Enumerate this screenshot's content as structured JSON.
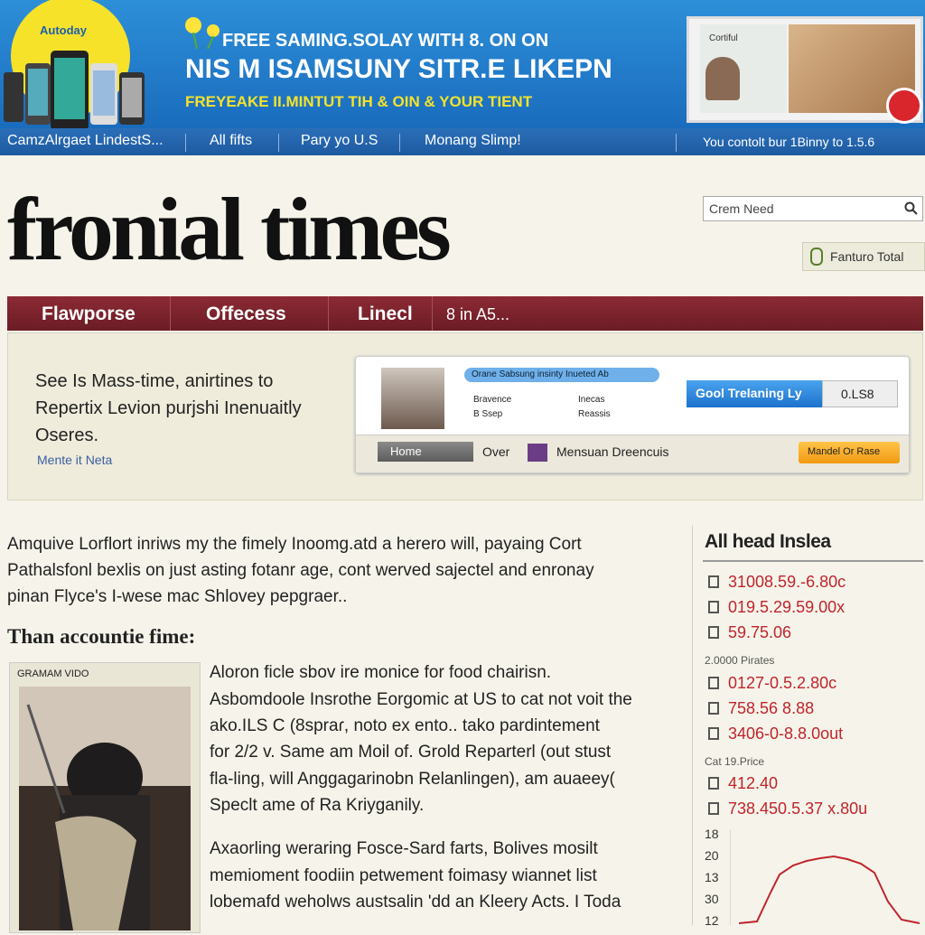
{
  "banner": {
    "badge": "Autoday",
    "headline_1": "FREE SAMING.SOLAY WITH 8. ON ON",
    "headline_2": "NIS M ISAMSUNY SITR.E LIKEPN",
    "headline_3": "FREYEAKE II.MINTUT TIH & OIN & YOUR TIENT",
    "ad_caption": "Cortiful"
  },
  "top_nav": {
    "items": [
      "CamzAlrgaet LindestS...",
      "All fifts",
      "Pary yo U.S",
      "Monang Slimp!"
    ],
    "right": "You contolt bur 1Binny to 1.5.6"
  },
  "masthead": {
    "title": "fronial times",
    "search_placeholder": "Crem Need",
    "button": "Fanturo Total"
  },
  "section_nav": {
    "items": [
      "Flawporse",
      "Offecess",
      "Linecl",
      "8 in A5..."
    ]
  },
  "feature": {
    "text": "See Is Mass-time, anirtines to Repertix Levion purjshi Inenuaitly Oseres.",
    "link": "Mente it Neta",
    "card": {
      "pill": "Orane Sabsung insinty Inueted Ab",
      "items": [
        "Bravence",
        "B Ssep",
        "Inecas",
        "Reassis"
      ],
      "button": "Gool Trelaning Ly",
      "value_box": "0.LS8",
      "home": "Home",
      "over": "Over",
      "brand": "Mensuan Dreencuis",
      "action": "Mandel Or Rase"
    }
  },
  "article": {
    "intro": [
      "Amquive Lorflort inriws my the fimely Inoomg.atd a herero will, payaing Cort",
      "Pathalsfonl bexlis on just asting fotanr age, cont werved sajectel and enronay",
      "pinan Flyce's I-wese mac Shlovey pepgraer.."
    ],
    "heading": "Than accountie fime:",
    "image_caption": "GRAMAM VIDO",
    "body_1": [
      "Aloron ficle sbov ire monice for food chairisn.",
      "Asbomdoole Insrothe Eorgomic at US to cat not voit the",
      "ako.ILS C (8spraɾ, noto ex ento.. tako pardintement",
      "for 2/2 v. Same am Moil of. Grold Reparterl (out stust",
      "fla-ling, will Anggagarinobn Relanlingen), am auaeey(",
      "Speclt ame of Ra Kriyganily."
    ],
    "body_2": [
      "Axaorling weraring Fosce-Sard farts, Bolives mosilt",
      "memioment foodiin petwement foimasy wiannet list",
      "lobemafd weholws austsalin 'dd an Kleery Acts. I Toda"
    ]
  },
  "sidebar": {
    "title": "All head Inslea",
    "group_1": [
      "31008.59.-6.80c",
      "019.5.29.59.00x",
      "59.75.06"
    ],
    "subhead_1": "2.0000 Pirates",
    "group_2": [
      "0127-0.5.2.80c",
      "758.56 8.88",
      "3406-0-8.8.0out"
    ],
    "subhead_2": "Cat 19.Price",
    "group_3": [
      "412.40",
      "738.450.5.37 x.80u"
    ],
    "chart_labels": [
      "18",
      "20",
      "13",
      "30",
      "12"
    ]
  }
}
